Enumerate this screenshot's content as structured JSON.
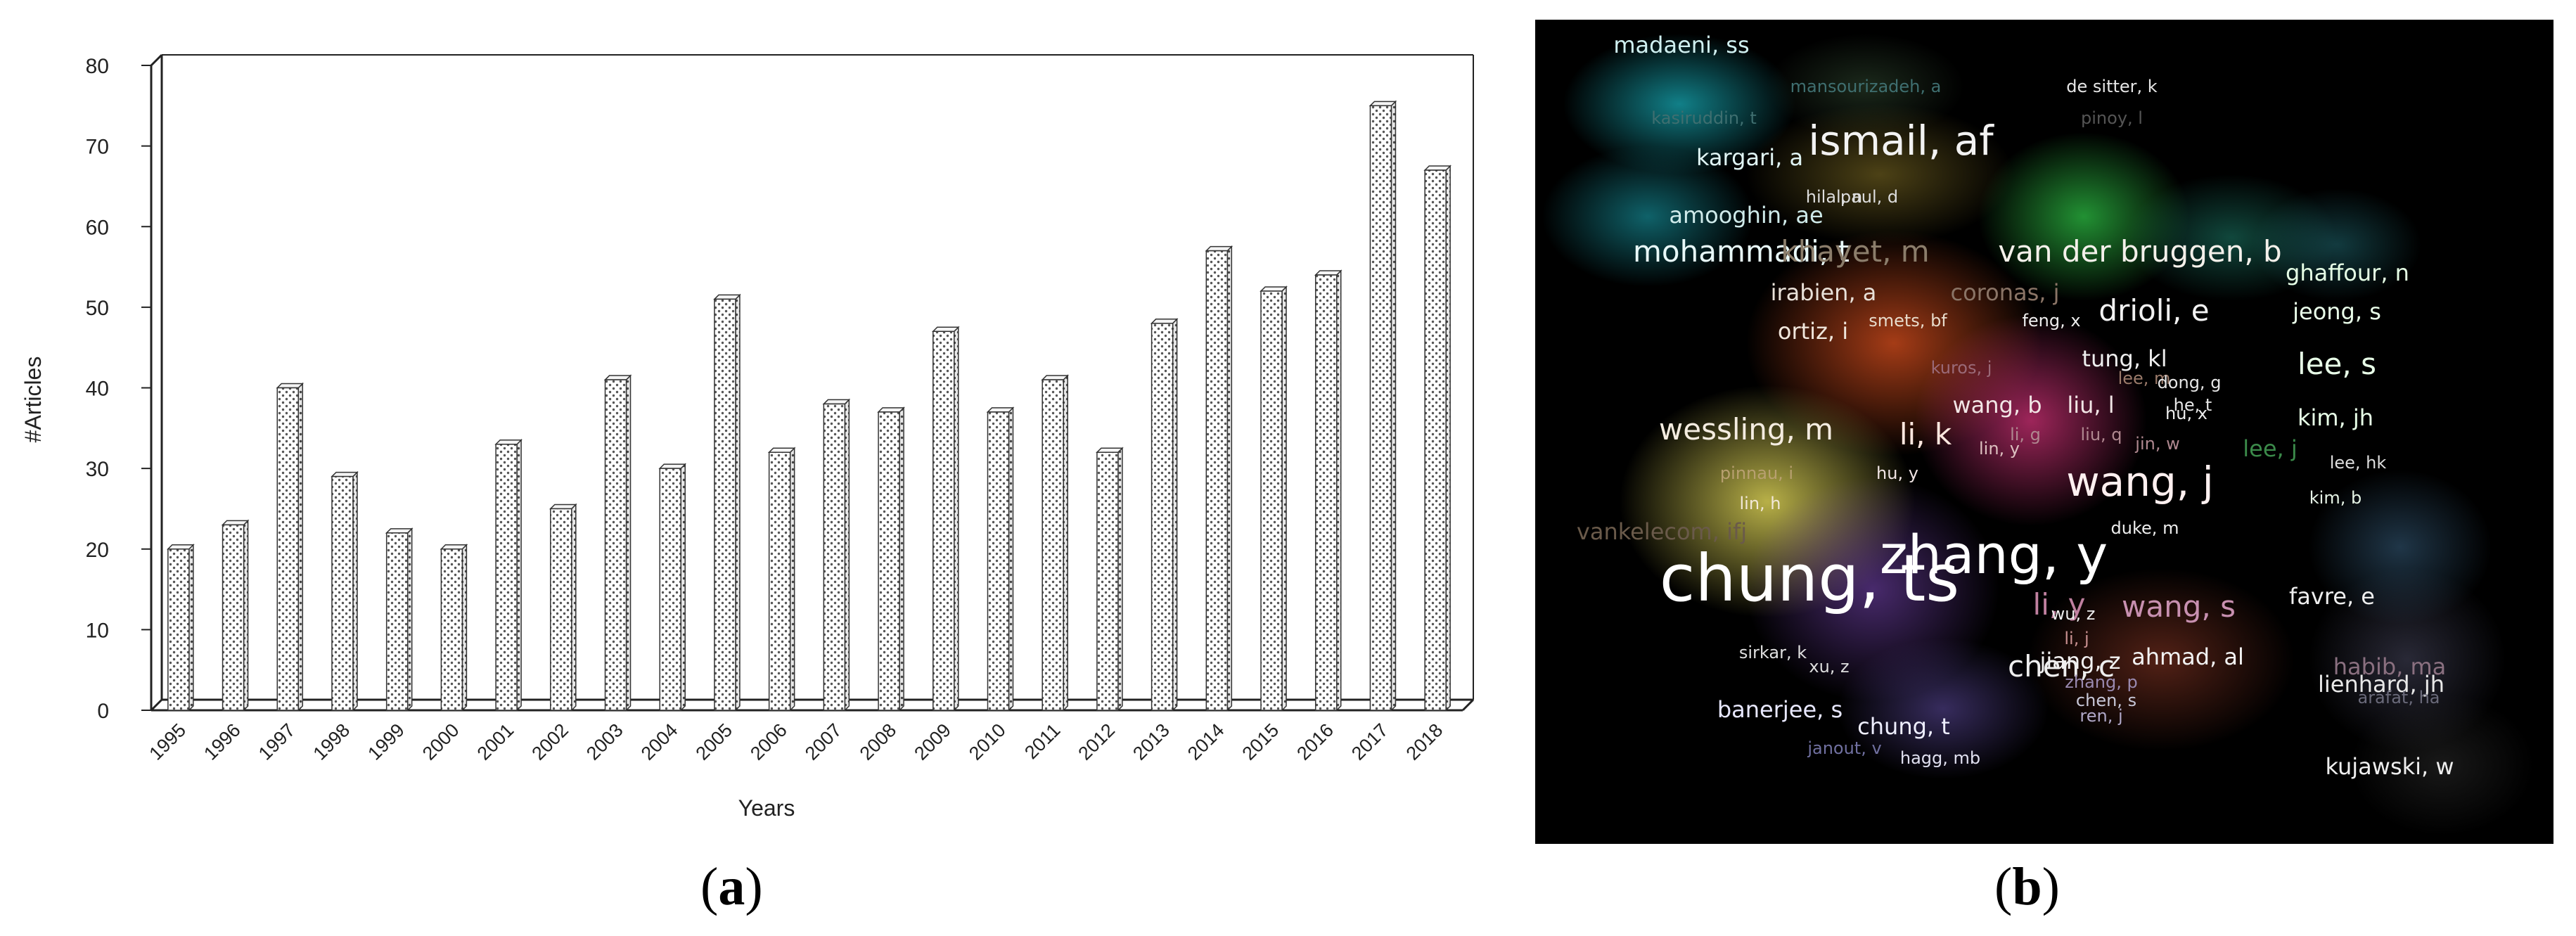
{
  "chart_data": [
    {
      "type": "bar",
      "panel": "(a)",
      "categories": [
        "1995",
        "1996",
        "1997",
        "1998",
        "1999",
        "2000",
        "2001",
        "2002",
        "2003",
        "2004",
        "2005",
        "2006",
        "2007",
        "2008",
        "2009",
        "2010",
        "2011",
        "2012",
        "2013",
        "2014",
        "2015",
        "2016",
        "2017",
        "2018"
      ],
      "values": [
        20,
        23,
        40,
        29,
        22,
        20,
        33,
        25,
        41,
        30,
        51,
        32,
        38,
        37,
        47,
        37,
        41,
        32,
        48,
        57,
        52,
        54,
        75,
        67
      ],
      "xlabel": "Years",
      "ylabel": "#Articles",
      "ylim": [
        0,
        80
      ],
      "yticks": [
        0,
        10,
        20,
        30,
        40,
        50,
        60,
        70,
        80
      ],
      "bar_fill": "dotted",
      "style": "3d"
    },
    {
      "type": "heatmap",
      "panel": "(b)",
      "background": "#000000",
      "terms": [
        {
          "label": "madaeni, ss",
          "weight": 2,
          "color": "#cfeff0"
        },
        {
          "label": "mansourizadeh, a",
          "weight": 1,
          "color": "#3f6f70"
        },
        {
          "label": "de sitter, k",
          "weight": 1,
          "color": "#e6e6e6"
        },
        {
          "label": "kasiruddin, t",
          "weight": 1,
          "color": "#3f6f70"
        },
        {
          "label": "pinoy, l",
          "weight": 1,
          "color": "#555555"
        },
        {
          "label": "ismail, af",
          "weight": 4,
          "color": "#f2f2f2"
        },
        {
          "label": "kargari, a",
          "weight": 2,
          "color": "#e0f4f4"
        },
        {
          "label": "hilal, n",
          "weight": 1,
          "color": "#dddddd"
        },
        {
          "label": "paul, d",
          "weight": 1,
          "color": "#dddddd"
        },
        {
          "label": "amooghin, ae",
          "weight": 2,
          "color": "#cfeaea"
        },
        {
          "label": "mohammadi, t",
          "weight": 3,
          "color": "#e8f8f8"
        },
        {
          "label": "khayet, m",
          "weight": 3,
          "color": "#8b7d6b"
        },
        {
          "label": "van der bruggen, b",
          "weight": 3,
          "color": "#f4f0ea"
        },
        {
          "label": "irabien, a",
          "weight": 2,
          "color": "#e8e0d8"
        },
        {
          "label": "coronas, j",
          "weight": 2,
          "color": "#8a7466"
        },
        {
          "label": "ghaffour, n",
          "weight": 2,
          "color": "#e6ffe6"
        },
        {
          "label": "drioli, e",
          "weight": 3,
          "color": "#f2f2f2"
        },
        {
          "label": "jeong, s",
          "weight": 2,
          "color": "#eaffea"
        },
        {
          "label": "ortiz, i",
          "weight": 2,
          "color": "#f0e6dc"
        },
        {
          "label": "smets, bf",
          "weight": 1,
          "color": "#e8dccc"
        },
        {
          "label": "feng, x",
          "weight": 1,
          "color": "#eeeeee"
        },
        {
          "label": "tung, kl",
          "weight": 2,
          "color": "#eeeeee"
        },
        {
          "label": "lee, s",
          "weight": 3,
          "color": "#e8ffe8"
        },
        {
          "label": "kuros, j",
          "weight": 1,
          "color": "#9a6a78"
        },
        {
          "label": "lee, m",
          "weight": 1,
          "color": "#9a7a6a"
        },
        {
          "label": "dong, g",
          "weight": 1,
          "color": "#e6e6e6"
        },
        {
          "label": "he, t",
          "weight": 1,
          "color": "#e6e6e6"
        },
        {
          "label": "kim, jh",
          "weight": 2,
          "color": "#e8ffe8"
        },
        {
          "label": "wang, b",
          "weight": 2,
          "color": "#f2e6e6"
        },
        {
          "label": "liu, l",
          "weight": 2,
          "color": "#f2e6e6"
        },
        {
          "label": "hu, x",
          "weight": 1,
          "color": "#eeeeee"
        },
        {
          "label": "wessling, m",
          "weight": 3,
          "color": "#f4ece0"
        },
        {
          "label": "li, k",
          "weight": 3,
          "color": "#ffe8e0"
        },
        {
          "label": "lin, y",
          "weight": 1,
          "color": "#ddc0c0"
        },
        {
          "label": "jin, w",
          "weight": 1,
          "color": "#b08890"
        },
        {
          "label": "liu, q",
          "weight": 1,
          "color": "#b08890"
        },
        {
          "label": "li, g",
          "weight": 1,
          "color": "#b08890"
        },
        {
          "label": "lee, j",
          "weight": 2,
          "color": "#3b8a4a"
        },
        {
          "label": "lee, hk",
          "weight": 1,
          "color": "#dddddd"
        },
        {
          "label": "pinnau, i",
          "weight": 1,
          "color": "#b8a070"
        },
        {
          "label": "hu, y",
          "weight": 1,
          "color": "#f2e6e6"
        },
        {
          "label": "wang, j",
          "weight": 4,
          "color": "#fff0f0"
        },
        {
          "label": "lin, h",
          "weight": 1,
          "color": "#f2e8d8"
        },
        {
          "label": "kim, b",
          "weight": 1,
          "color": "#e6f4e6"
        },
        {
          "label": "vankelecom, ifj",
          "weight": 2,
          "color": "#6a5a4a"
        },
        {
          "label": "duke, m",
          "weight": 1,
          "color": "#eeeeee"
        },
        {
          "label": "zhang, y",
          "weight": 5,
          "color": "#ffffff"
        },
        {
          "label": "chung, ts",
          "weight": 6,
          "color": "#ffffff"
        },
        {
          "label": "favre, e",
          "weight": 2,
          "color": "#eeeeee"
        },
        {
          "label": "li, y",
          "weight": 3,
          "color": "#c080a0"
        },
        {
          "label": "wu, z",
          "weight": 1,
          "color": "#eeeeee"
        },
        {
          "label": "wang, s",
          "weight": 3,
          "color": "#c890b0"
        },
        {
          "label": "li, j",
          "weight": 1,
          "color": "#c89090"
        },
        {
          "label": "sirkar, k",
          "weight": 1,
          "color": "#e0e0e0"
        },
        {
          "label": "jiang, z",
          "weight": 2,
          "color": "#f2f2f2"
        },
        {
          "label": "ahmad, al",
          "weight": 2,
          "color": "#f2f2f2"
        },
        {
          "label": "habib, ma",
          "weight": 2,
          "color": "#8a7080"
        },
        {
          "label": "xu, z",
          "weight": 1,
          "color": "#dddddd"
        },
        {
          "label": "chen, c",
          "weight": 3,
          "color": "#eeeeee"
        },
        {
          "label": "zhang, p",
          "weight": 1,
          "color": "#9a8ab0"
        },
        {
          "label": "lienhard, jh",
          "weight": 2,
          "color": "#e8e8e8"
        },
        {
          "label": "arafat, ha",
          "weight": 1,
          "color": "#6a6a7a"
        },
        {
          "label": "banerjee, s",
          "weight": 2,
          "color": "#e8e8ff"
        },
        {
          "label": "chen, s",
          "weight": 1,
          "color": "#c8c8d8"
        },
        {
          "label": "ren, j",
          "weight": 1,
          "color": "#b0a8c8"
        },
        {
          "label": "chung, t",
          "weight": 2,
          "color": "#eeeeff"
        },
        {
          "label": "janout, v",
          "weight": 1,
          "color": "#7070a0"
        },
        {
          "label": "hagg, mb",
          "weight": 1,
          "color": "#e0e0f0"
        },
        {
          "label": "kujawski, w",
          "weight": 2,
          "color": "#eeeeee"
        }
      ]
    }
  ],
  "captions": {
    "a_open": "(",
    "a_letter": "a",
    "a_close": ")",
    "b_open": "(",
    "b_letter": "b",
    "b_close": ")"
  }
}
